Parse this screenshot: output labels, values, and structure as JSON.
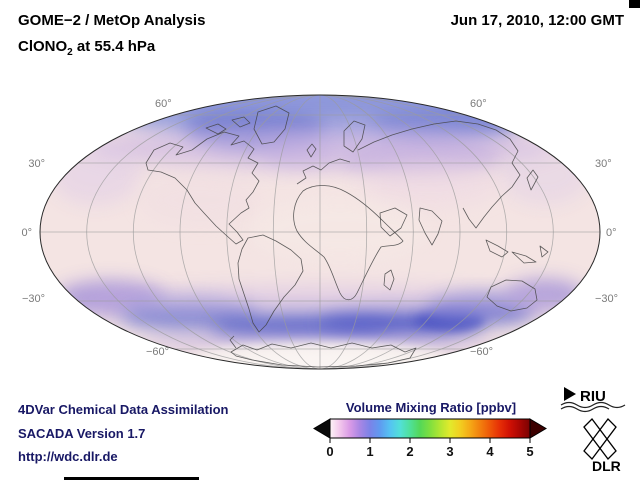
{
  "header": {
    "title_line1": "GOME−2 / MetOp Analysis",
    "species": "ClONO",
    "species_sub": "2",
    "level_suffix": " at 55.4 hPa",
    "datetime": "Jun 17, 2010, 12:00 GMT"
  },
  "map": {
    "projection": "Mollweide",
    "lat_labels": {
      "left": [
        "30°",
        "0°",
        "−30°"
      ],
      "right": [
        "30°",
        "0°",
        "−30°"
      ],
      "top": [
        "60°",
        "60°"
      ],
      "bottom": [
        "−60°",
        "−60°"
      ]
    }
  },
  "colorbar": {
    "title": "Volume Mixing Ratio [ppbv]",
    "ticks": [
      "0",
      "1",
      "2",
      "3",
      "4",
      "5"
    ],
    "min": 0,
    "max": 5,
    "under_color": "#0a0a0a",
    "over_color": "#3c0000",
    "stops": [
      {
        "p": 0,
        "c": "#fdf4f6"
      },
      {
        "p": 5,
        "c": "#f2c6ec"
      },
      {
        "p": 10,
        "c": "#d99ae6"
      },
      {
        "p": 15,
        "c": "#a886e4"
      },
      {
        "p": 20,
        "c": "#7b83e8"
      },
      {
        "p": 25,
        "c": "#5f9bf0"
      },
      {
        "p": 30,
        "c": "#55c3f2"
      },
      {
        "p": 35,
        "c": "#52e0d8"
      },
      {
        "p": 40,
        "c": "#4fe09a"
      },
      {
        "p": 45,
        "c": "#54d858"
      },
      {
        "p": 50,
        "c": "#7fdf3f"
      },
      {
        "p": 55,
        "c": "#b2e632"
      },
      {
        "p": 60,
        "c": "#e2ea2c"
      },
      {
        "p": 65,
        "c": "#f2cf20"
      },
      {
        "p": 70,
        "c": "#f5a916"
      },
      {
        "p": 75,
        "c": "#f2800e"
      },
      {
        "p": 80,
        "c": "#ee5708"
      },
      {
        "p": 85,
        "c": "#e62e06"
      },
      {
        "p": 90,
        "c": "#cf1004"
      },
      {
        "p": 95,
        "c": "#a80603"
      },
      {
        "p": 100,
        "c": "#7a0202"
      }
    ]
  },
  "footer": {
    "line1": "4DVar Chemical Data Assimilation",
    "line2": "SACADA Version 1.7",
    "line3": "http://wdc.dlr.de"
  },
  "logos": {
    "riu": "RIU",
    "dlr": "DLR"
  },
  "colors": {
    "footer_text": "#181865",
    "label_gray": "#7a7a7a"
  },
  "chart_data": {
    "type": "heatmap",
    "title": "GOME−2 / MetOp Analysis — ClONO2 at 55.4 hPa",
    "datetime": "Jun 17, 2010, 12:00 GMT",
    "variable": "ClONO2 volume mixing ratio",
    "units": "ppbv",
    "level": "55.4 hPa",
    "projection": "Mollweide global map",
    "colorbar_range": [
      0,
      5
    ],
    "legend_title": "Volume Mixing Ratio [ppbv]",
    "graticule": {
      "parallels_deg": [
        60,
        30,
        0,
        -30,
        -60
      ],
      "meridian_spacing_deg": 30
    },
    "regions": [
      {
        "region": "Arctic / high northern latitudes (55–85°N)",
        "approx_ppbv": "1.0–1.8",
        "appearance": "blue/violet band across top of map"
      },
      {
        "region": "Northern mid-latitudes (30–50°N)",
        "approx_ppbv": "0.4–0.9",
        "appearance": "pale pink with light violet patches"
      },
      {
        "region": "Tropics (20°S–20°N)",
        "approx_ppbv": "0.2–0.5",
        "appearance": "pale pink, near-uniform"
      },
      {
        "region": "Southern mid-latitude band (45–70°S)",
        "approx_ppbv": "1.2–2.0",
        "appearance": "pronounced blue band circling the hemisphere"
      },
      {
        "region": "Antarctic interior (poleward of ~75°S)",
        "approx_ppbv": "0.0–0.3",
        "appearance": "near white, graticule visible"
      }
    ]
  }
}
